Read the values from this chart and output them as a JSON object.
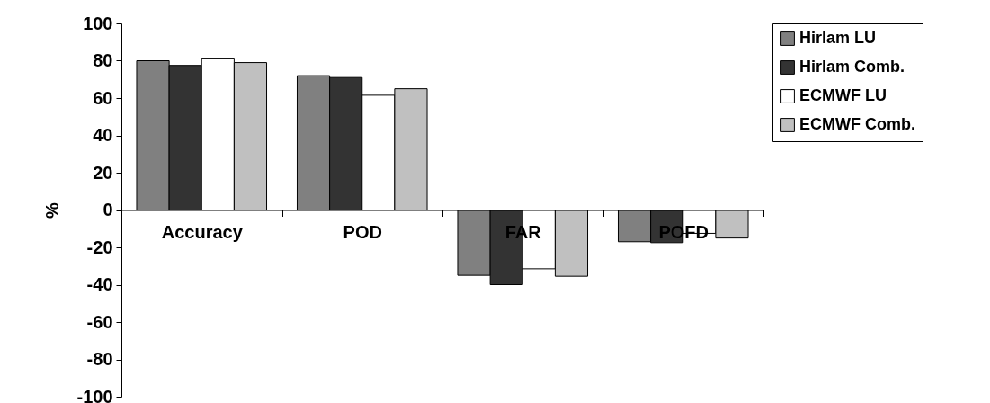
{
  "chart_data": {
    "type": "bar",
    "ylabel": "%",
    "categories": [
      "Accuracy",
      "POD",
      "FAR",
      "POFD"
    ],
    "series": [
      {
        "name": "Hirlam LU",
        "color": "#808080",
        "values": [
          80,
          72,
          -35,
          -17
        ]
      },
      {
        "name": "Hirlam Comb.",
        "color": "#333333",
        "values": [
          77.5,
          71,
          -40,
          -17.5
        ]
      },
      {
        "name": "ECMWF LU",
        "color": "#ffffff",
        "values": [
          81,
          61.5,
          -31.5,
          -12.5
        ]
      },
      {
        "name": "ECMWF Comb.",
        "color": "#c0c0c0",
        "values": [
          79,
          65,
          -35.5,
          -15
        ]
      }
    ],
    "ylim": [
      -100,
      100
    ],
    "yticks": [
      -100,
      -80,
      -60,
      -40,
      -20,
      0,
      20,
      40,
      60,
      80,
      100
    ],
    "grid": false,
    "legend": "right"
  }
}
